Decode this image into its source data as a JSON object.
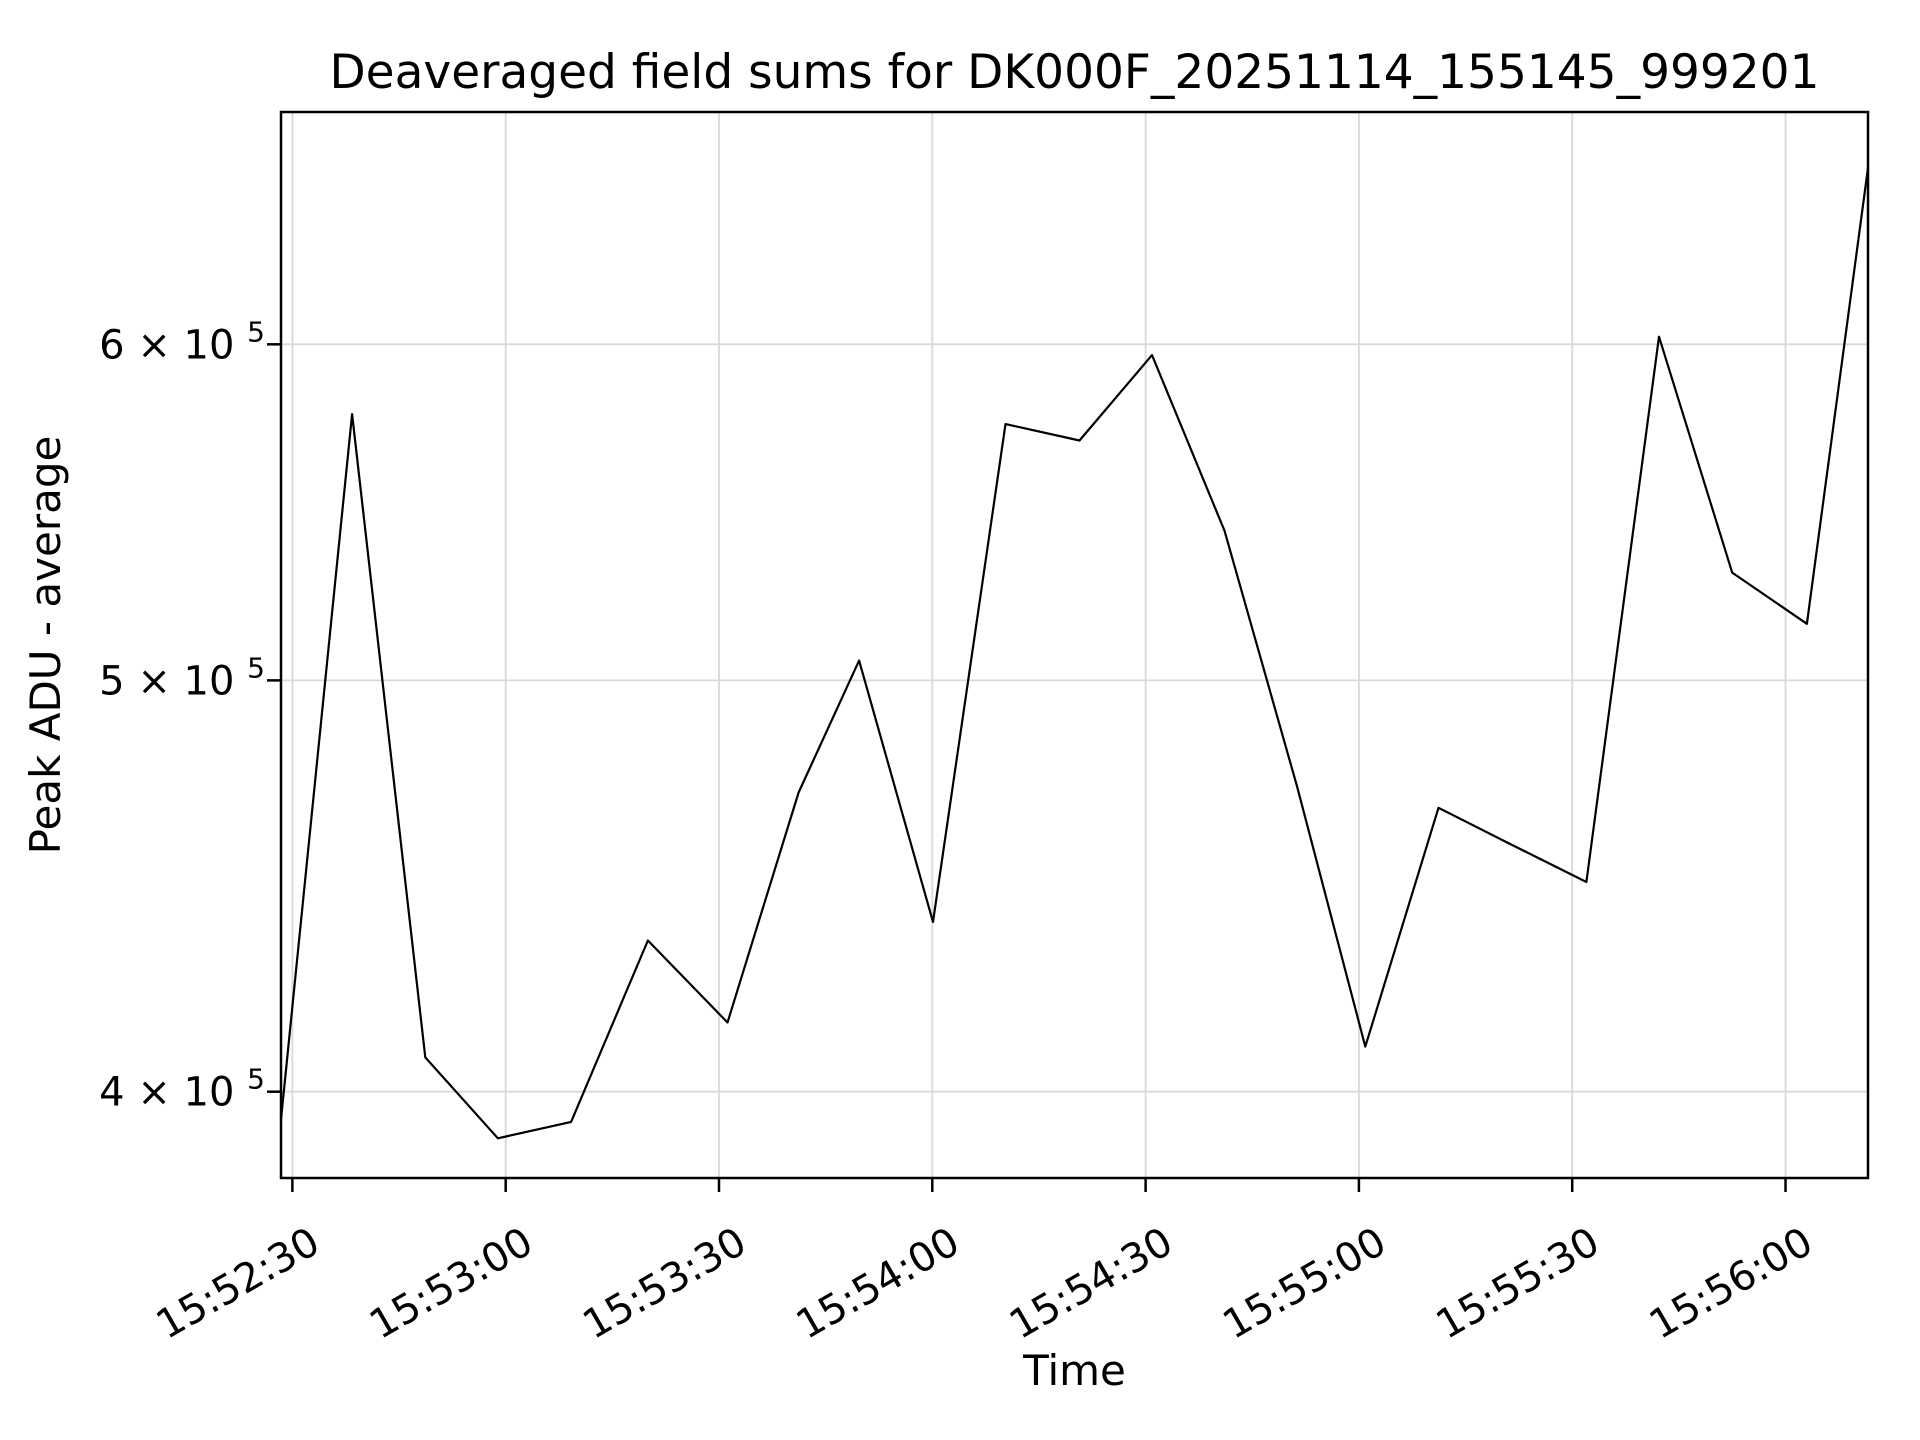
{
  "chart_data": {
    "type": "line",
    "title": "Deaveraged field sums for DK000F_20251114_155145_999201",
    "xlabel": "Time",
    "ylabel": "Peak ADU - average",
    "yscale": "log",
    "ylim": [
      381700,
      680600
    ],
    "x_domain_seconds": [
      -1.6,
      221.6
    ],
    "grid": true,
    "legend": "none",
    "line_color": "#000000",
    "grid_color": "#d9d9d9",
    "background_color": "#ffffff",
    "x_ticks": [
      {
        "t": 0,
        "label": "15:52:30"
      },
      {
        "t": 30,
        "label": "15:53:00"
      },
      {
        "t": 60,
        "label": "15:53:30"
      },
      {
        "t": 90,
        "label": "15:54:00"
      },
      {
        "t": 120,
        "label": "15:54:30"
      },
      {
        "t": 150,
        "label": "15:55:00"
      },
      {
        "t": 180,
        "label": "15:55:30"
      },
      {
        "t": 210,
        "label": "15:56:00"
      }
    ],
    "y_ticks": [
      {
        "value": 400000,
        "mantissa": "4 × 10",
        "exponent": "5"
      },
      {
        "value": 500000,
        "mantissa": "5 × 10",
        "exponent": "5"
      },
      {
        "value": 600000,
        "mantissa": "6 × 10",
        "exponent": "5"
      }
    ],
    "series": [
      {
        "name": "peak-adu-minus-average",
        "x_times": [
          "15:52:28",
          "15:52:38",
          "15:52:49",
          "15:52:59",
          "15:53:09",
          "15:53:20",
          "15:53:31",
          "15:53:41",
          "15:53:50",
          "15:54:00",
          "15:54:10",
          "15:54:21",
          "15:54:31",
          "15:54:41",
          "15:54:51",
          "15:55:01",
          "15:55:11",
          "15:55:21",
          "15:55:32",
          "15:55:42",
          "15:55:53",
          "15:56:03",
          "15:56:12"
        ],
        "t_seconds": [
          -1.6,
          8.4,
          18.7,
          28.9,
          39.2,
          50.0,
          61.2,
          71.2,
          79.7,
          90.1,
          100.3,
          110.7,
          120.9,
          131.1,
          141.3,
          150.9,
          161.2,
          171.3,
          182.0,
          192.2,
          202.5,
          213.0,
          221.6
        ],
        "values": [
          394000,
          577700,
          407500,
          390000,
          393500,
          434200,
          415300,
          470500,
          505400,
          438600,
          574600,
          569500,
          596500,
          542300,
          472100,
          409900,
          466600,
          457500,
          448200,
          602500,
          530100,
          515600,
          660300
        ]
      }
    ]
  }
}
